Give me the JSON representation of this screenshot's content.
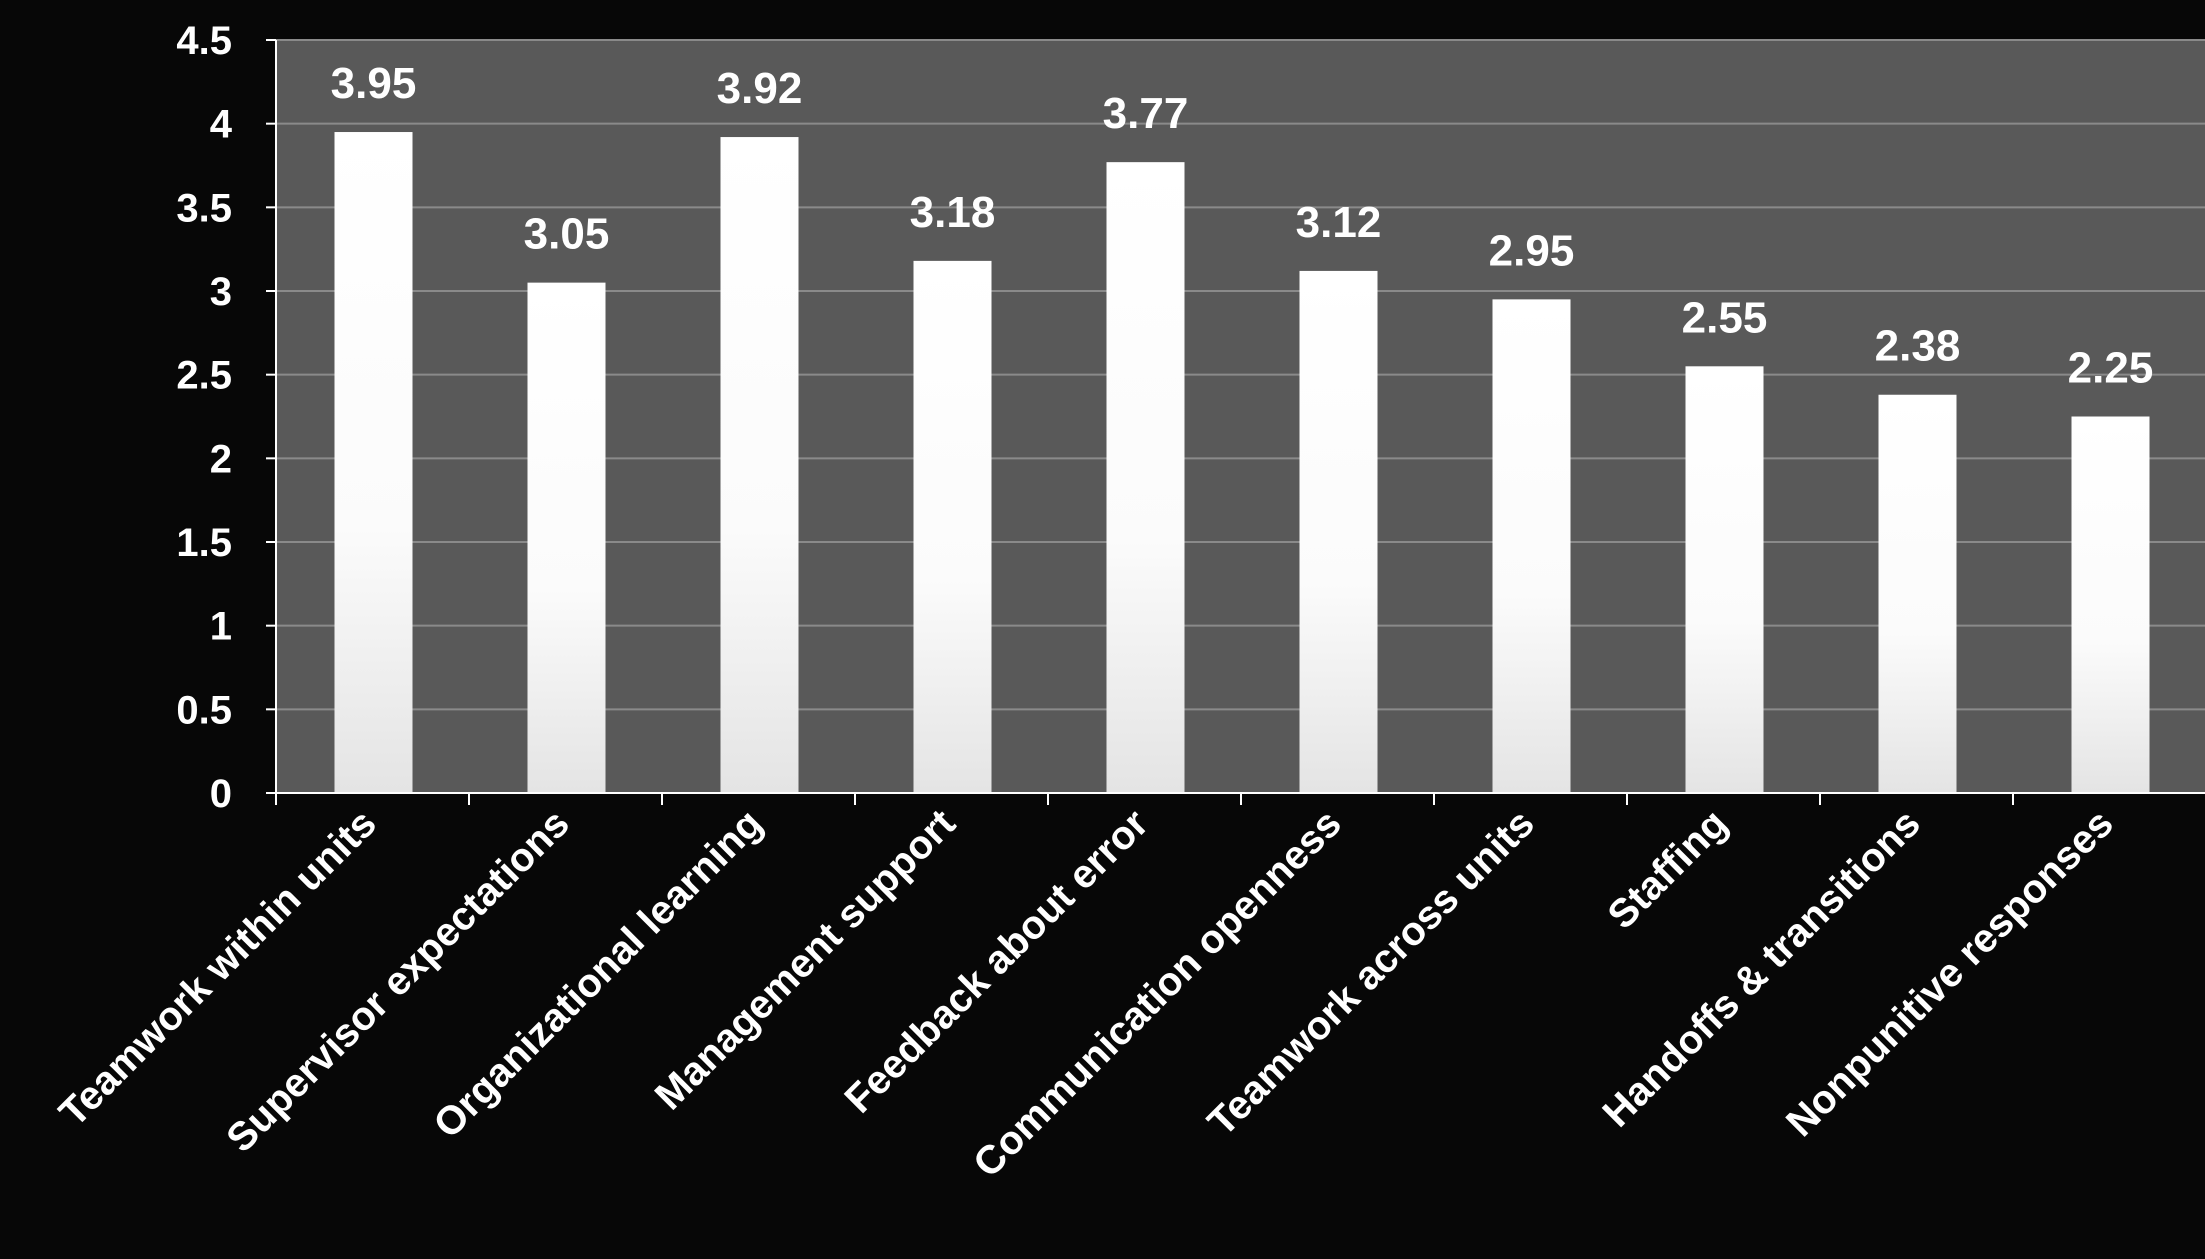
{
  "chart_data": {
    "type": "bar",
    "title": "",
    "xlabel": "",
    "ylabel": "",
    "categories": [
      "Teamwork within units",
      "Supervisor expectations",
      "Organizational learning",
      "Management support",
      "Feedback about error",
      "Communication openness",
      "Teamwork across units",
      "Staffing",
      "Handoffs & transitions",
      "Nonpunitive responses"
    ],
    "values": [
      3.95,
      3.05,
      3.92,
      3.18,
      3.77,
      3.12,
      2.95,
      2.55,
      2.38,
      2.25
    ],
    "data_labels": [
      "3.95",
      "3.05",
      "3.92",
      "3.18",
      "3.77",
      "3.12",
      "2.95",
      "2.55",
      "2.38",
      "2.25"
    ],
    "ylim": [
      0,
      4.5
    ],
    "yticks": [
      "0",
      "0.5",
      "1",
      "1.5",
      "2",
      "2.5",
      "3",
      "3.5",
      "4",
      "4.5"
    ],
    "grid": true,
    "legend": "none",
    "colors": {
      "background": "#070707",
      "plot_area": "#595959",
      "gridline": "#8a8a8a",
      "bar_top": "#ffffff",
      "bar_bottom": "#e4e4e4",
      "text": "#ffffff"
    }
  }
}
